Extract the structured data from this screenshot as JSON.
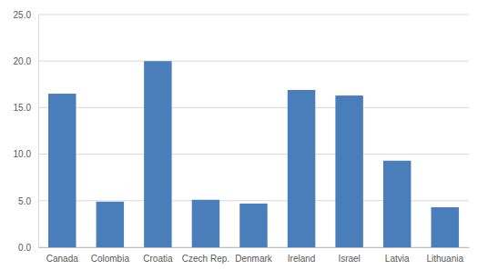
{
  "chart_data": {
    "type": "bar",
    "categories": [
      "Canada",
      "Colombia",
      "Croatia",
      "Czech Rep.",
      "Denmark",
      "Ireland",
      "Israel",
      "Latvia",
      "Lithuania"
    ],
    "values": [
      16.5,
      4.9,
      20.0,
      5.1,
      4.7,
      16.9,
      16.3,
      9.3,
      4.3
    ],
    "color": "#4a7ebb",
    "ylim": [
      0,
      25
    ],
    "yticks": [
      {
        "value": 0,
        "label": "0.0"
      },
      {
        "value": 5,
        "label": "5.0"
      },
      {
        "value": 10,
        "label": "10.0"
      },
      {
        "value": 15,
        "label": "15.0"
      },
      {
        "value": 20,
        "label": "20.0"
      },
      {
        "value": 25,
        "label": "25.0"
      }
    ],
    "grid": true
  }
}
